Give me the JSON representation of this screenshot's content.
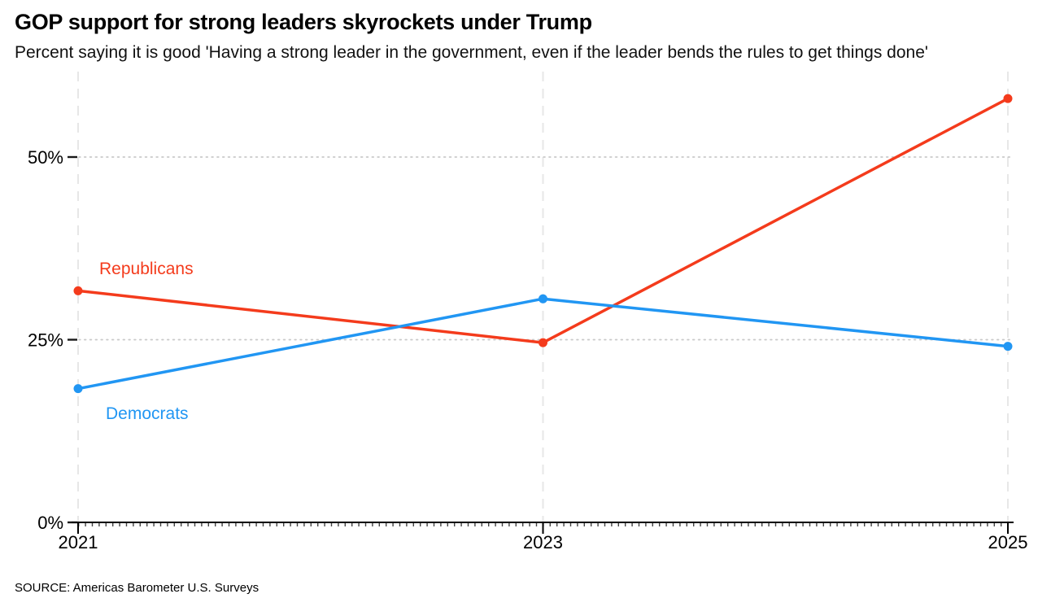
{
  "header": {
    "title": "GOP support for strong leaders skyrockets under Trump",
    "subtitle": "Percent saying it is good 'Having a strong leader in the government, even if the leader bends the rules to get things done'"
  },
  "footer": {
    "source": "SOURCE: Americas Barometer U.S. Surveys"
  },
  "colors": {
    "republicans": "#f43b1c",
    "democrats": "#2196f3",
    "axis": "#000000",
    "dotted_gridline": "#c9c9c9",
    "dashed_gridline": "#e7e7e7",
    "tick_text": "#000000"
  },
  "chart_data": {
    "type": "line",
    "title": "GOP support for strong leaders skyrockets under Trump",
    "subtitle": "Percent saying it is good 'Having a strong leader in the government, even if the leader bends the rules to get things done'",
    "xlabel": "",
    "ylabel": "",
    "x": [
      2021,
      2023,
      2025
    ],
    "x_tick_labels": [
      "2021",
      "2023",
      "2025"
    ],
    "y_ticks": [
      0,
      25,
      50
    ],
    "y_tick_labels": [
      "0%",
      "25%",
      "50%"
    ],
    "ylim": [
      0,
      62
    ],
    "grid": "dotted horizontal lines at 25% and 50%, light dashed vertical lines at each year, solid black baseline at 0%",
    "legend_position": "inline labels near 2021 data points",
    "series": [
      {
        "name": "Republicans",
        "color": "#f43b1c",
        "values": [
          31.7,
          24.6,
          58.0
        ]
      },
      {
        "name": "Democrats",
        "color": "#2196f3",
        "values": [
          18.3,
          30.6,
          24.1
        ]
      }
    ],
    "source": "SOURCE: Americas Barometer U.S. Surveys"
  }
}
